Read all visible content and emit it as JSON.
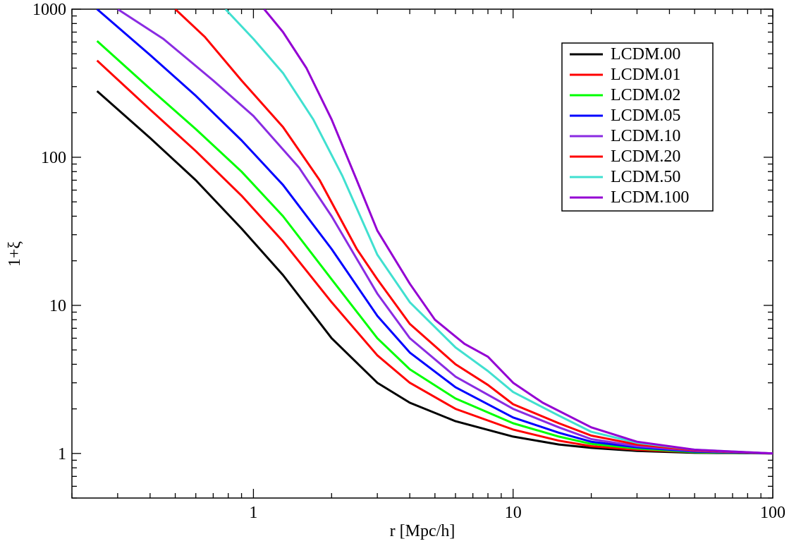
{
  "chart_data": {
    "type": "line",
    "title": "",
    "xlabel": "r [Mpc/h]",
    "ylabel": "1+ξ",
    "xscale": "log",
    "yscale": "log",
    "xlim": [
      0.2,
      100
    ],
    "ylim": [
      0.5,
      1000
    ],
    "x_tick_labels": [
      {
        "value": 1,
        "label": "1"
      },
      {
        "value": 10,
        "label": "10"
      },
      {
        "value": 100,
        "label": "100"
      }
    ],
    "y_tick_labels": [
      {
        "value": 1,
        "label": "1"
      },
      {
        "value": 10,
        "label": "10"
      },
      {
        "value": 100,
        "label": "100"
      },
      {
        "value": 1000,
        "label": "1000"
      }
    ],
    "legend_position": "top-right",
    "series": [
      {
        "name": "LCDM.00",
        "color": "#000000",
        "x": [
          0.25,
          0.4,
          0.6,
          0.9,
          1.3,
          2.0,
          3.0,
          4.0,
          6.0,
          10,
          15,
          20,
          30,
          50,
          100
        ],
        "y": [
          280,
          135,
          70,
          33,
          16,
          6.0,
          3.0,
          2.2,
          1.65,
          1.3,
          1.15,
          1.09,
          1.04,
          1.01,
          1.0
        ]
      },
      {
        "name": "LCDM.01",
        "color": "#ff0000",
        "x": [
          0.25,
          0.4,
          0.6,
          0.9,
          1.3,
          2.0,
          3.0,
          4.0,
          6.0,
          10,
          15,
          20,
          30,
          50,
          100
        ],
        "y": [
          450,
          210,
          110,
          55,
          27,
          10.5,
          4.6,
          3.0,
          2.0,
          1.45,
          1.22,
          1.12,
          1.06,
          1.02,
          1.0
        ]
      },
      {
        "name": "LCDM.02",
        "color": "#00ff00",
        "x": [
          0.25,
          0.4,
          0.6,
          0.9,
          1.3,
          2.0,
          3.0,
          4.0,
          6.0,
          10,
          15,
          20,
          30,
          50,
          100
        ],
        "y": [
          610,
          290,
          155,
          80,
          40,
          15,
          6.0,
          3.7,
          2.35,
          1.6,
          1.3,
          1.16,
          1.08,
          1.02,
          1.0
        ]
      },
      {
        "name": "LCDM.05",
        "color": "#0000ff",
        "x": [
          0.25,
          0.4,
          0.6,
          0.9,
          1.3,
          2.0,
          3.0,
          4.0,
          6.0,
          10,
          15,
          20,
          30,
          50,
          100
        ],
        "y": [
          1000,
          490,
          260,
          130,
          65,
          24,
          8.5,
          4.8,
          2.8,
          1.75,
          1.38,
          1.2,
          1.1,
          1.03,
          1.0
        ]
      },
      {
        "name": "LCDM.10",
        "color": "#8a2be2",
        "x": [
          0.3,
          0.45,
          0.7,
          1.0,
          1.5,
          2.0,
          3.0,
          4.0,
          6.0,
          10,
          15,
          20,
          30,
          50,
          100
        ],
        "y": [
          1000,
          630,
          330,
          190,
          85,
          40,
          12,
          6.0,
          3.3,
          2.0,
          1.5,
          1.25,
          1.12,
          1.04,
          1.0
        ]
      },
      {
        "name": "LCDM.20",
        "color": "#ff0000",
        "x": [
          0.5,
          0.65,
          0.9,
          1.3,
          1.8,
          2.5,
          3.0,
          4.0,
          6.0,
          8.0,
          10,
          15,
          20,
          30,
          50,
          100
        ],
        "y": [
          1000,
          650,
          330,
          160,
          70,
          24,
          15,
          7.5,
          4.0,
          2.9,
          2.15,
          1.6,
          1.32,
          1.15,
          1.05,
          1.0
        ]
      },
      {
        "name": "LCDM.50",
        "color": "#40e0d0",
        "x": [
          0.78,
          1.0,
          1.3,
          1.7,
          2.2,
          3.0,
          4.0,
          6.0,
          8.0,
          10,
          15,
          20,
          30,
          50,
          100
        ],
        "y": [
          1000,
          630,
          370,
          180,
          75,
          22,
          10.5,
          5.2,
          3.6,
          2.6,
          1.8,
          1.4,
          1.18,
          1.06,
          1.0
        ]
      },
      {
        "name": "LCDM.100",
        "color": "#9400d3",
        "x": [
          1.1,
          1.3,
          1.6,
          2.0,
          2.5,
          3.0,
          4.0,
          5.0,
          6.5,
          8.0,
          10,
          13,
          20,
          30,
          50,
          100
        ],
        "y": [
          1000,
          700,
          400,
          180,
          70,
          32,
          14,
          8.0,
          5.5,
          4.5,
          3.0,
          2.2,
          1.5,
          1.2,
          1.06,
          1.0
        ]
      }
    ]
  }
}
